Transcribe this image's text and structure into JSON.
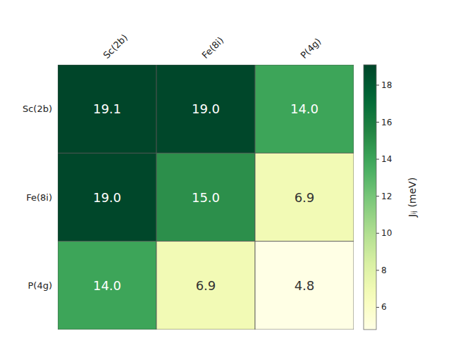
{
  "chart_data": {
    "type": "heatmap",
    "categories": [
      "Sc(2b)",
      "Fe(8i)",
      "P(4g)"
    ],
    "values": [
      [
        19.1,
        19.0,
        14.0
      ],
      [
        19.0,
        15.0,
        6.9
      ],
      [
        14.0,
        6.9,
        4.8
      ]
    ],
    "value_labels": [
      [
        "19.1",
        "19.0",
        "14.0"
      ],
      [
        "19.0",
        "15.0",
        "6.9"
      ],
      [
        "14.0",
        "6.9",
        "4.8"
      ]
    ],
    "data_labels": true,
    "colorbar_label": "Jᵢⱼ (meV)",
    "colorbar_range": [
      4.8,
      19.1
    ],
    "colorbar_ticks": [
      6,
      8,
      10,
      12,
      14,
      16,
      18
    ]
  }
}
